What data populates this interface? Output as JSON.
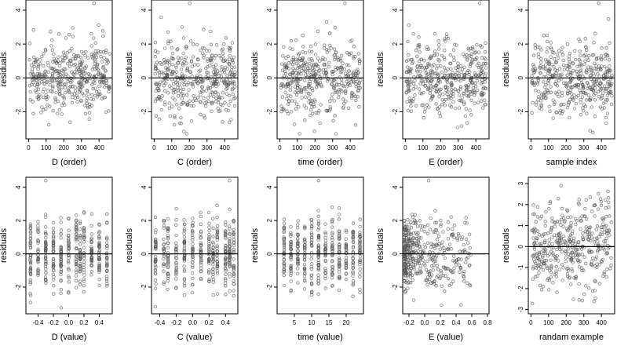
{
  "chart_data": [
    {
      "type": "scatter",
      "xlabel": "D (order)",
      "ylabel": "residuals",
      "xlim": [
        -15,
        475
      ],
      "ylim": [
        -3.6,
        4.6
      ],
      "xticks": [
        0,
        100,
        200,
        300,
        400
      ],
      "yticks": [
        -2,
        0,
        2,
        4
      ],
      "x_kind": "order",
      "ref_line": 0
    },
    {
      "type": "scatter",
      "xlabel": "C (order)",
      "ylabel": "residuals",
      "xlim": [
        -15,
        475
      ],
      "ylim": [
        -3.6,
        4.6
      ],
      "xticks": [
        0,
        100,
        200,
        300,
        400
      ],
      "yticks": [
        -2,
        0,
        2,
        4
      ],
      "x_kind": "order",
      "ref_line": 0
    },
    {
      "type": "scatter",
      "xlabel": "time (order)",
      "ylabel": "residuals",
      "xlim": [
        -15,
        475
      ],
      "ylim": [
        -3.6,
        4.6
      ],
      "xticks": [
        0,
        100,
        200,
        300,
        400
      ],
      "yticks": [
        -2,
        0,
        2,
        4
      ],
      "x_kind": "order",
      "ref_line": 0
    },
    {
      "type": "scatter",
      "xlabel": "E (order)",
      "ylabel": "residuals",
      "xlim": [
        -15,
        475
      ],
      "ylim": [
        -3.6,
        4.6
      ],
      "xticks": [
        0,
        100,
        200,
        300,
        400
      ],
      "yticks": [
        -2,
        0,
        2,
        4
      ],
      "x_kind": "order",
      "ref_line": 0
    },
    {
      "type": "scatter",
      "xlabel": "sample index",
      "ylabel": "residuals",
      "xlim": [
        -15,
        475
      ],
      "ylim": [
        -3.6,
        4.6
      ],
      "xticks": [
        0,
        100,
        200,
        300,
        400
      ],
      "yticks": [
        -2,
        0,
        2,
        4
      ],
      "x_kind": "order",
      "ref_line": 0
    },
    {
      "type": "scatter",
      "xlabel": "D (value)",
      "ylabel": "residuals",
      "xlim": [
        -0.56,
        0.57
      ],
      "ylim": [
        -3.6,
        4.6
      ],
      "xticks": [
        -0.4,
        -0.2,
        0.0,
        0.2,
        0.4
      ],
      "yticks": [
        -2,
        0,
        2,
        4
      ],
      "x_kind": "discrete",
      "x_levels": [
        -0.5,
        -0.4,
        -0.3,
        -0.2,
        -0.1,
        0.0,
        0.1,
        0.15,
        0.2,
        0.3,
        0.4,
        0.5
      ],
      "ref_line": 0
    },
    {
      "type": "scatter",
      "xlabel": "C (value)",
      "ylabel": "residuals",
      "xlim": [
        -0.5,
        0.55
      ],
      "ylim": [
        -3.6,
        4.6
      ],
      "xticks": [
        -0.4,
        -0.2,
        0.0,
        0.2,
        0.4
      ],
      "yticks": [
        -2,
        0,
        2,
        4
      ],
      "x_kind": "discrete",
      "x_levels": [
        -0.45,
        -0.35,
        -0.3,
        -0.2,
        -0.1,
        0.0,
        0.1,
        0.2,
        0.25,
        0.3,
        0.4,
        0.45,
        0.5
      ],
      "ref_line": 0
    },
    {
      "type": "scatter",
      "xlabel": "time (value)",
      "ylabel": "residuals",
      "xlim": [
        0,
        25
      ],
      "ylim": [
        -3.6,
        4.6
      ],
      "xticks": [
        5,
        10,
        15,
        20
      ],
      "yticks": [
        -2,
        0,
        2,
        4
      ],
      "x_kind": "discrete",
      "x_levels": [
        2,
        4,
        6,
        8,
        10,
        12,
        14,
        16,
        18,
        20,
        22,
        24
      ],
      "ref_line": 0
    },
    {
      "type": "scatter",
      "xlabel": "E (value)",
      "ylabel": "residuals",
      "xlim": [
        -0.28,
        0.82
      ],
      "ylim": [
        -3.6,
        4.6
      ],
      "xticks": [
        -0.2,
        0.0,
        0.2,
        0.4,
        0.6,
        0.8
      ],
      "yticks": [
        -2,
        0,
        2,
        4
      ],
      "x_kind": "skewed",
      "ref_line": 0
    },
    {
      "type": "scatter",
      "xlabel": "randam example",
      "ylabel": "residuals",
      "xlim": [
        -15,
        475
      ],
      "ylim": [
        -3.2,
        3.3
      ],
      "xticks": [
        0,
        100,
        200,
        300,
        400
      ],
      "yticks": [
        -3,
        -2,
        -1,
        0,
        1,
        2,
        3
      ],
      "x_kind": "order",
      "ref_line": 0
    }
  ]
}
